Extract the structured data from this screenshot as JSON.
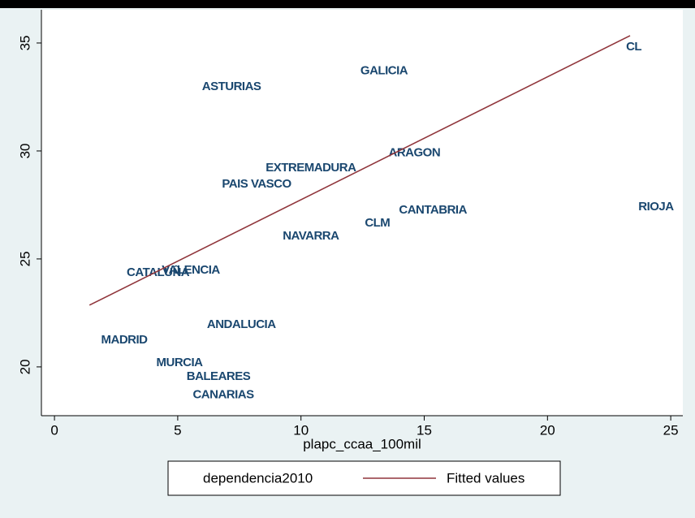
{
  "chart_data": {
    "type": "scatter",
    "x_label": "plapc_ccaa_100mil",
    "xlim": [
      -0.53,
      25.49
    ],
    "xticks": [
      0,
      5,
      10,
      15,
      20,
      25
    ],
    "ylim": [
      17.74,
      36.54
    ],
    "yticks": [
      20,
      25,
      30,
      35
    ],
    "grid": false,
    "legend": "bottom",
    "series": [
      {
        "name": "dependencia2010",
        "type": "scatter",
        "color": "#1a476f",
        "labels": [
          "CL",
          "GALICIA",
          "ASTURIAS",
          "ARAGON",
          "EXTREMADURA",
          "PAIS VASCO",
          "CANTABRIA",
          "RIOJA",
          "CLM",
          "NAVARRA",
          "VALENCIA",
          "CATALUÑA",
          "ANDALUCIA",
          "MADRID",
          "MURCIA",
          "BALEARES",
          "CANARIAS"
        ],
        "x": [
          23.5,
          13.37,
          7.18,
          14.6,
          10.4,
          8.2,
          15.35,
          24.4,
          13.1,
          10.4,
          5.53,
          4.2,
          7.58,
          2.83,
          5.07,
          6.65,
          6.85
        ],
        "values": [
          34.8,
          33.7,
          32.97,
          29.9,
          29.2,
          28.45,
          27.25,
          27.4,
          26.65,
          26.05,
          24.47,
          24.36,
          21.95,
          21.24,
          20.19,
          19.55,
          18.7
        ]
      },
      {
        "name": "Fitted values",
        "type": "line",
        "color": "#90353b",
        "x": [
          1.42,
          23.35
        ],
        "values": [
          22.86,
          35.34
        ]
      }
    ]
  }
}
